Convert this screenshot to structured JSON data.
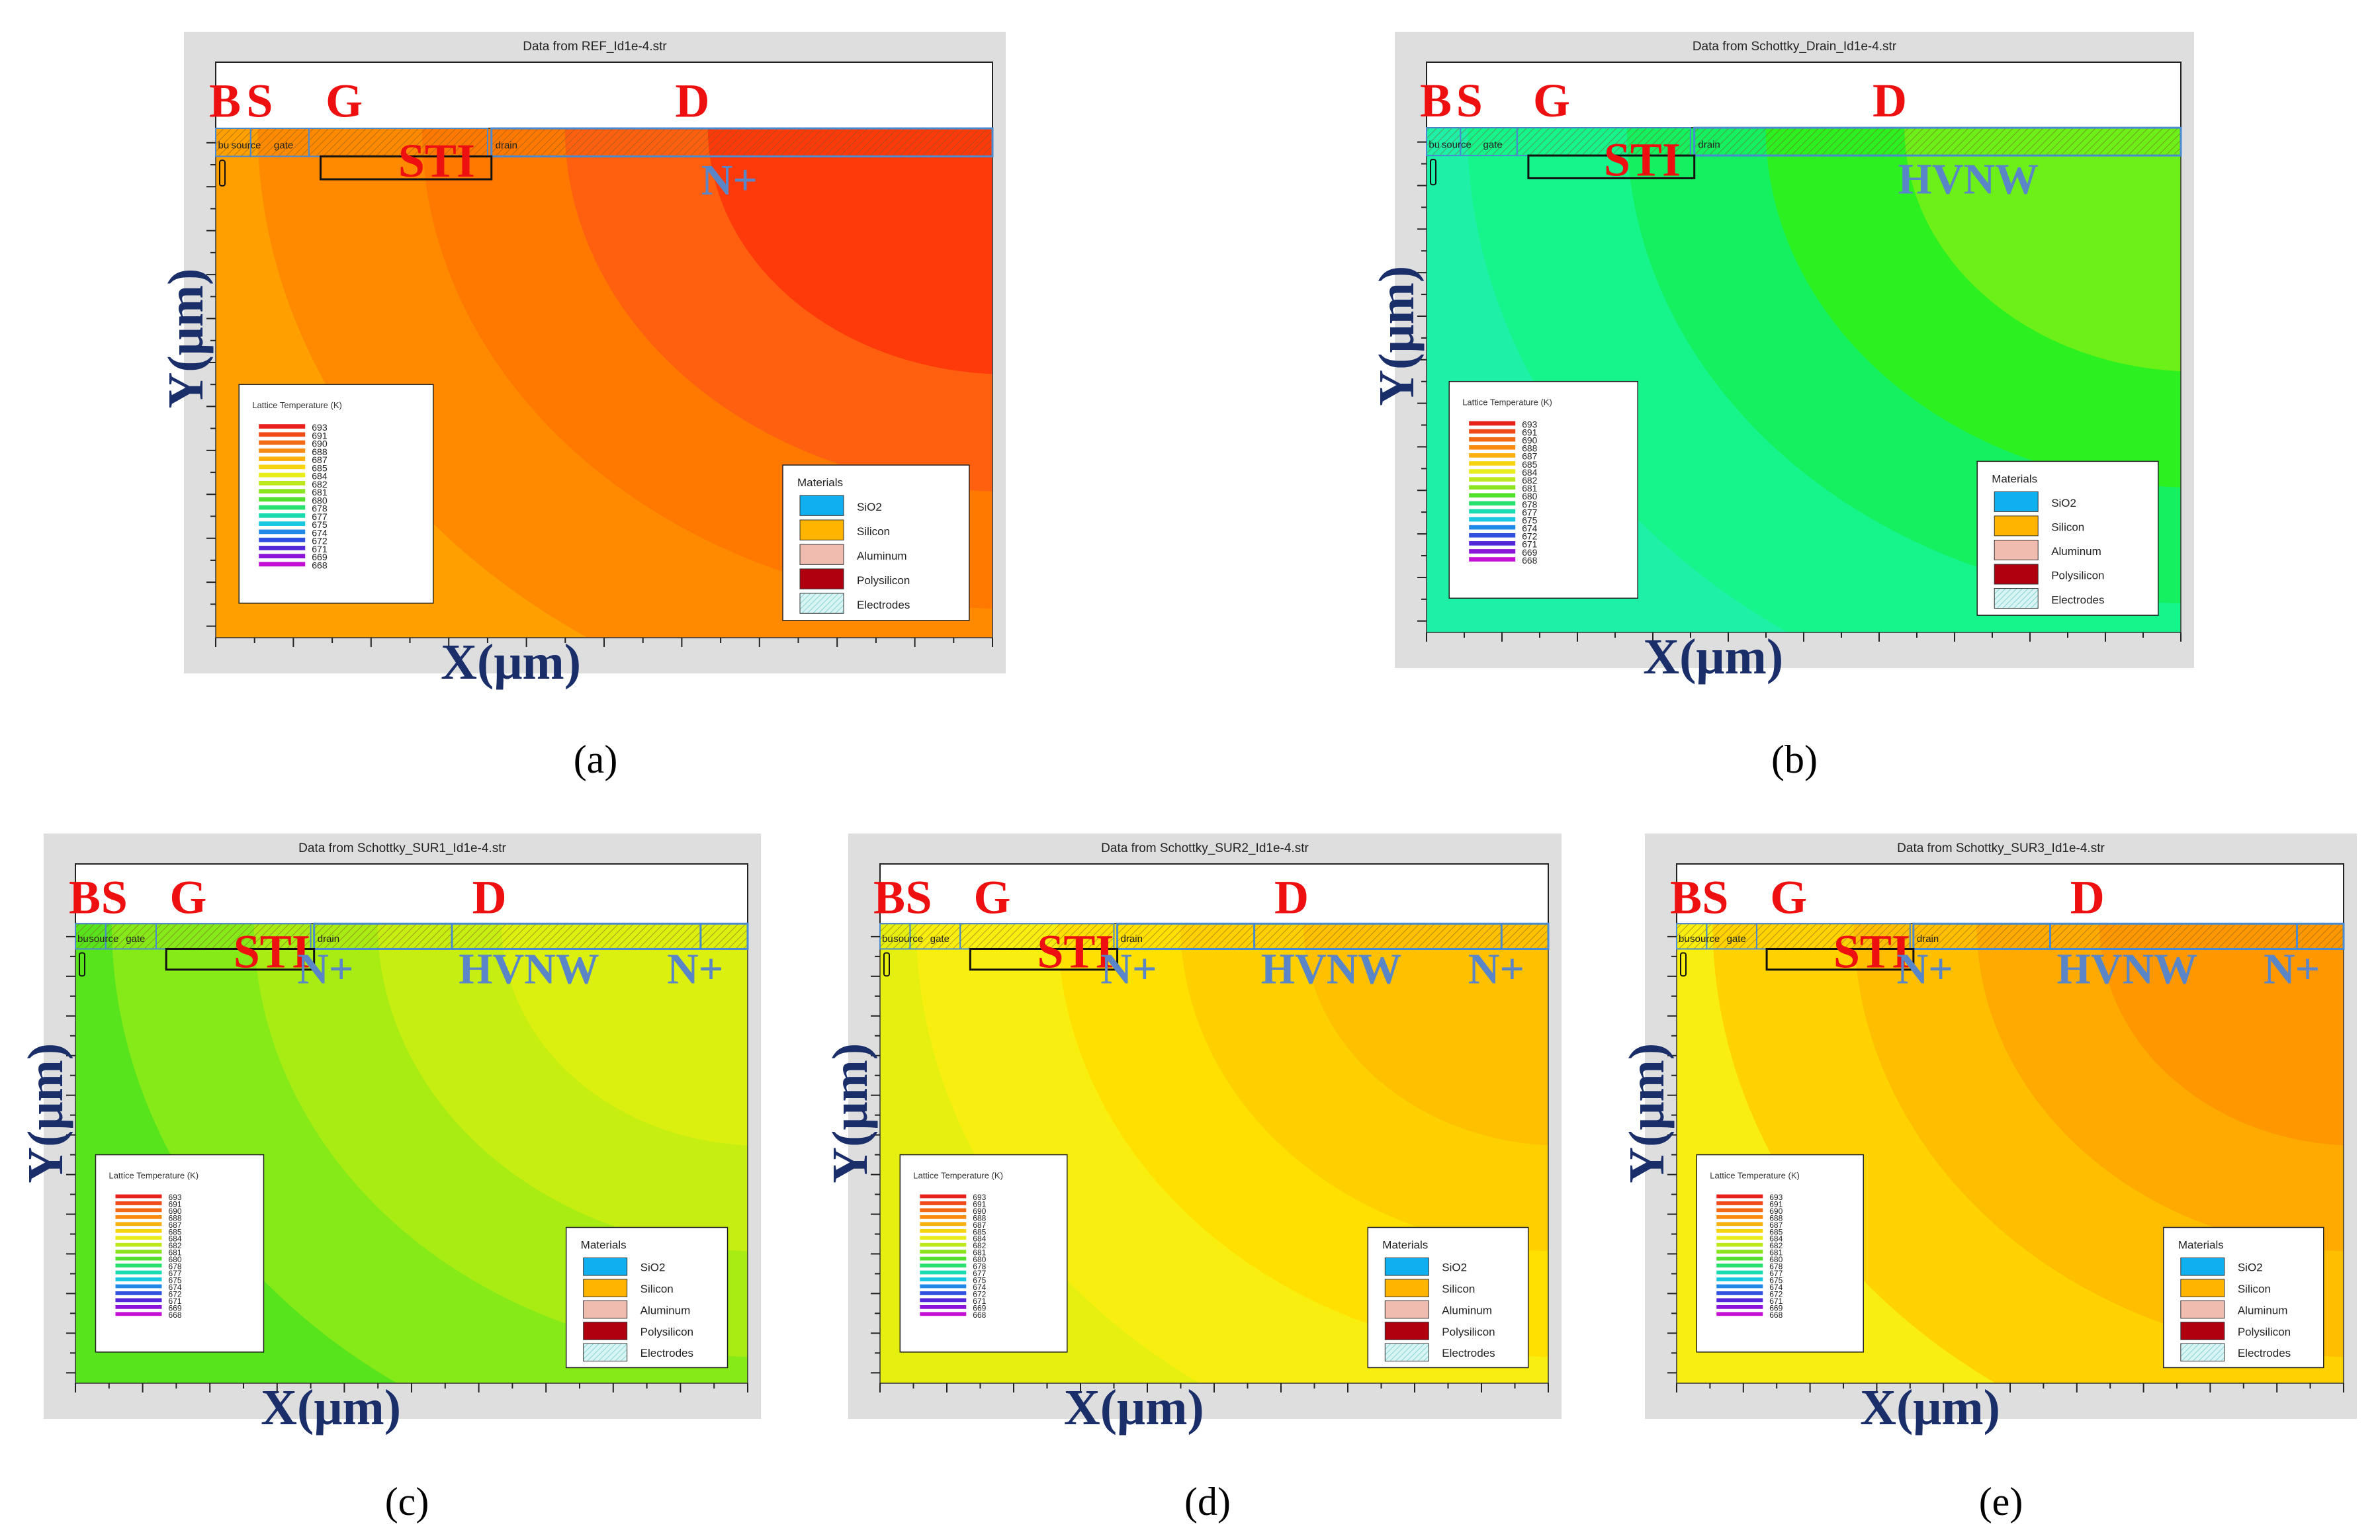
{
  "figure": {
    "panels": [
      {
        "id": "a",
        "caption": "(a)",
        "title": "Data from REF_Id1e-4.str",
        "region_labels": [
          "B",
          "S",
          "G",
          "D",
          "STI"
        ],
        "layer_labels": [
          "N+"
        ],
        "electrodes": [
          "bu",
          "source",
          "gate",
          "drain"
        ],
        "axis_x": "X(μm)",
        "axis_y": "Y(μm)",
        "contour_colors": [
          "#ffa000",
          "#ff8a00",
          "#ff7800",
          "#ff6010",
          "#ff3a0a"
        ]
      },
      {
        "id": "b",
        "caption": "(b)",
        "title": "Data from Schottky_Drain_Id1e-4.str",
        "region_labels": [
          "B",
          "S",
          "G",
          "D",
          "STI"
        ],
        "layer_labels": [
          "HVNW"
        ],
        "electrodes": [
          "bu",
          "source",
          "gate",
          "drain"
        ],
        "axis_x": "X(μm)",
        "axis_y": "Y(μm)",
        "contour_colors": [
          "#1ff0a8",
          "#16f48c",
          "#14f060",
          "#2cf020",
          "#6cf018"
        ]
      },
      {
        "id": "c",
        "caption": "(c)",
        "title": "Data from Schottky_SUR1_Id1e-4.str",
        "region_labels": [
          "B",
          "S",
          "G",
          "D",
          "STI"
        ],
        "layer_labels": [
          "N+",
          "HVNW",
          "N+"
        ],
        "electrodes": [
          "bu",
          "source",
          "gate",
          "drain"
        ],
        "axis_x": "X(μm)",
        "axis_y": "Y(μm)",
        "contour_colors": [
          "#58e41c",
          "#86ea18",
          "#a8ec14",
          "#c6ee10",
          "#dcf010"
        ]
      },
      {
        "id": "d",
        "caption": "(d)",
        "title": "Data from Schottky_SUR2_Id1e-4.str",
        "region_labels": [
          "B",
          "S",
          "G",
          "D",
          "STI"
        ],
        "layer_labels": [
          "N+",
          "HVNW",
          "N+"
        ],
        "electrodes": [
          "bu",
          "source",
          "gate",
          "drain"
        ],
        "axis_x": "X(μm)",
        "axis_y": "Y(μm)",
        "contour_colors": [
          "#e6f010",
          "#f8ee10",
          "#ffe000",
          "#ffd000",
          "#ffc000"
        ]
      },
      {
        "id": "e",
        "caption": "(e)",
        "title": "Data from Schottky_SUR3_Id1e-4.str",
        "region_labels": [
          "B",
          "S",
          "G",
          "D",
          "STI"
        ],
        "layer_labels": [
          "N+",
          "HVNW",
          "N+"
        ],
        "electrodes": [
          "bu",
          "source",
          "gate",
          "drain"
        ],
        "axis_x": "X(μm)",
        "axis_y": "Y(μm)",
        "contour_colors": [
          "#f8ee10",
          "#ffd200",
          "#ffbe00",
          "#ffaa00",
          "#ff9800"
        ]
      }
    ],
    "legend_temperature": {
      "title": "Lattice Temperature (K)",
      "values": [
        "693",
        "691",
        "690",
        "688",
        "687",
        "685",
        "684",
        "682",
        "681",
        "680",
        "678",
        "677",
        "675",
        "674",
        "672",
        "671",
        "669",
        "668"
      ],
      "colors": [
        "#e8201c",
        "#f04a18",
        "#f46a14",
        "#f88c12",
        "#fcb010",
        "#f8d410",
        "#e8ec18",
        "#bce81c",
        "#8ce420",
        "#52e02c",
        "#28e070",
        "#18dcb0",
        "#18c8e0",
        "#2088e8",
        "#3050e0",
        "#5428d8",
        "#8c14d8",
        "#c410d4"
      ]
    },
    "legend_materials": {
      "title": "Materials",
      "items": [
        {
          "label": "SiO2",
          "color": "#10b0f0"
        },
        {
          "label": "Silicon",
          "color": "#ffb400"
        },
        {
          "label": "Aluminum",
          "color": "#f0bcb0"
        },
        {
          "label": "Polysilicon",
          "color": "#b00010"
        },
        {
          "label": "Electrodes",
          "color": "#c8f0f0"
        }
      ]
    }
  }
}
